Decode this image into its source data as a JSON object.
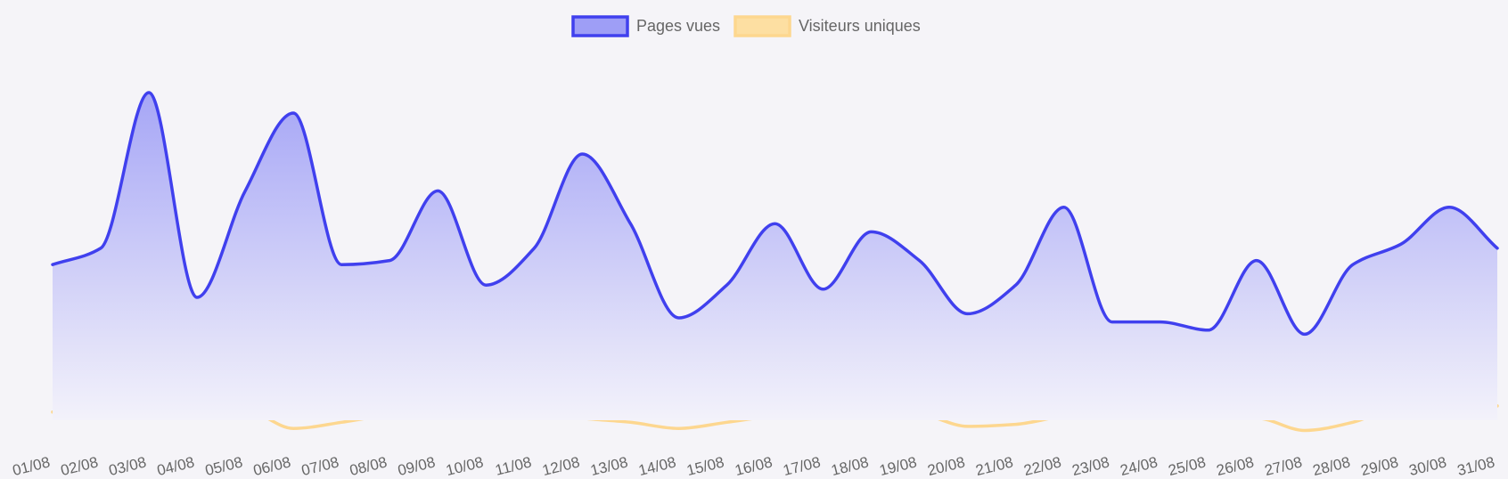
{
  "chart_data": {
    "type": "area",
    "title": "",
    "xlabel": "",
    "ylabel": "",
    "grid": false,
    "legend_position": "top-center",
    "ylim": [
      0,
      900
    ],
    "categories": [
      "01/08",
      "02/08",
      "03/08",
      "04/08",
      "05/08",
      "06/08",
      "07/08",
      "08/08",
      "09/08",
      "10/08",
      "11/08",
      "12/08",
      "13/08",
      "14/08",
      "15/08",
      "16/08",
      "17/08",
      "18/08",
      "19/08",
      "20/08",
      "21/08",
      "22/08",
      "23/08",
      "24/08",
      "25/08",
      "26/08",
      "27/08",
      "28/08",
      "29/08",
      "30/08",
      "31/08"
    ],
    "series": [
      {
        "name": "Pages vues",
        "color": "#4040ee",
        "fill_top": "#a6a6f6",
        "fill_bottom": "#f3f2fa",
        "legend_fill": "#9e9ef6",
        "values": [
          380,
          420,
          800,
          300,
          560,
          750,
          380,
          390,
          560,
          330,
          420,
          650,
          480,
          250,
          330,
          480,
          320,
          460,
          390,
          260,
          330,
          520,
          240,
          240,
          220,
          390,
          210,
          380,
          430,
          520,
          420
        ]
      },
      {
        "name": "Visiteurs uniques",
        "color": "#fdd78f",
        "fill_top": "#fde4b0",
        "fill_bottom": "#f3f2fa",
        "legend_fill": "#fddfa2",
        "values": [
          20,
          30,
          25,
          5,
          25,
          -20,
          -5,
          15,
          35,
          25,
          20,
          5,
          -5,
          -20,
          -5,
          10,
          15,
          20,
          15,
          -15,
          -10,
          10,
          20,
          15,
          5,
          5,
          -25,
          -5,
          35,
          40,
          35
        ]
      }
    ]
  }
}
